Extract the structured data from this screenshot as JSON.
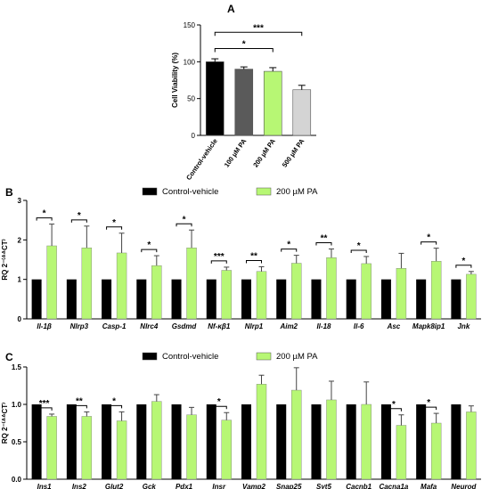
{
  "colors": {
    "black": "#000000",
    "green": "#b7f774",
    "c100": "#5a5a5a",
    "c200": "#b7f774",
    "c500": "#d4d4d4"
  },
  "panels": {
    "a": {
      "letter": "A"
    },
    "b": {
      "letter": "B"
    },
    "c": {
      "letter": "C"
    }
  },
  "chart_data": [
    {
      "id": "A",
      "type": "bar",
      "ylabel": "Cell Viability (%)",
      "ylim": [
        0,
        150
      ],
      "yticks": [
        0,
        50,
        100,
        150
      ],
      "categories": [
        "Control-vehicle",
        "100 µM PA",
        "200 µM PA",
        "500 µM PA"
      ],
      "values": [
        100,
        90,
        87,
        62
      ],
      "errors": [
        4,
        3,
        5,
        6
      ],
      "bar_colors": [
        "#000000",
        "#5a5a5a",
        "#b7f774",
        "#d4d4d4"
      ],
      "significance": [
        {
          "from": 0,
          "to": 2,
          "label": "*"
        },
        {
          "from": 0,
          "to": 3,
          "label": "***"
        }
      ]
    },
    {
      "id": "B",
      "type": "bar",
      "ylabel": "RQ 2⁻⁽ᐞᐞCT⁾",
      "ylim": [
        0,
        3
      ],
      "yticks": [
        0,
        1,
        2,
        3
      ],
      "categories": [
        "Il-1β",
        "Nlrp3",
        "Casp-1",
        "Nlrc4",
        "Gsdmd",
        "Nf-κβ1",
        "Nlrp1",
        "Aim2",
        "Il-18",
        "Il-6",
        "Asc",
        "Mapk8ip1",
        "Jnk"
      ],
      "series": [
        {
          "name": "Control-vehicle",
          "color": "#000000",
          "values": [
            1,
            1,
            1,
            1,
            1,
            1,
            1,
            1,
            1,
            1,
            1,
            1,
            1
          ]
        },
        {
          "name": "200 µM PA",
          "color": "#b7f774",
          "values": [
            1.85,
            1.8,
            1.67,
            1.35,
            1.8,
            1.23,
            1.2,
            1.41,
            1.55,
            1.4,
            1.28,
            1.46,
            1.13
          ],
          "errors": [
            0.55,
            0.55,
            0.5,
            0.25,
            0.45,
            0.08,
            0.12,
            0.2,
            0.22,
            0.18,
            0.38,
            0.33,
            0.07
          ]
        }
      ],
      "significance": [
        "*",
        "*",
        "*",
        "*",
        "*",
        "***",
        "**",
        "*",
        "**",
        "*",
        "",
        "*",
        "*"
      ]
    },
    {
      "id": "C",
      "type": "bar",
      "ylabel": "RQ 2⁻⁽ᐞᐞCT⁾",
      "ylim": [
        0,
        1.5
      ],
      "yticks": [
        0.0,
        0.5,
        1.0,
        1.5
      ],
      "categories": [
        "Ins1",
        "Ins2",
        "Glut2",
        "Gck",
        "Pdx1",
        "Insr",
        "Vamp2",
        "Snap25",
        "Syt5",
        "Cacnb1",
        "Cacna1a",
        "Mafa",
        "Neurod"
      ],
      "series": [
        {
          "name": "Control-vehicle",
          "color": "#000000",
          "values": [
            1,
            1,
            1,
            1,
            1,
            1,
            1,
            1,
            1,
            1,
            1,
            1,
            1
          ]
        },
        {
          "name": "200 µM PA",
          "color": "#b7f774",
          "values": [
            0.84,
            0.84,
            0.78,
            1.04,
            0.86,
            0.79,
            1.27,
            1.19,
            1.06,
            1.0,
            0.72,
            0.75,
            0.9
          ],
          "errors": [
            0.03,
            0.06,
            0.12,
            0.09,
            0.1,
            0.1,
            0.12,
            0.3,
            0.25,
            0.3,
            0.14,
            0.13,
            0.08
          ]
        }
      ],
      "significance": [
        "***",
        "**",
        "*",
        "",
        "",
        "*",
        "",
        "",
        "",
        "",
        "*",
        "*",
        ""
      ]
    }
  ]
}
